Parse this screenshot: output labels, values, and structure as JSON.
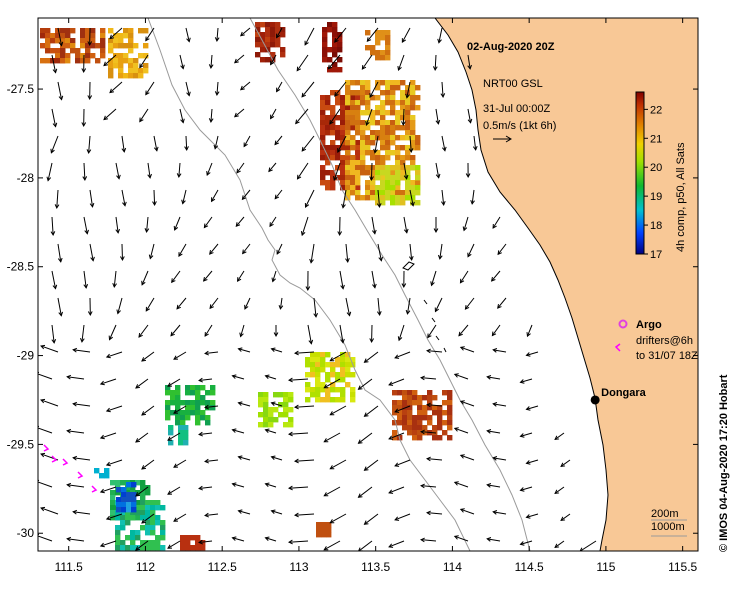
{
  "title": "02-Aug-2020 20Z",
  "credit": "© IMOS 04-Aug-2020 17:20 Hobart",
  "current_info": {
    "line1": "NRT00 GSL",
    "line2": "31-Jul 00:00Z",
    "scale": "0.5m/s (1kt 6h)"
  },
  "colorbar": {
    "label": "4h comp, p50, All Sats",
    "ticks": [
      "22",
      "21",
      "20",
      "19",
      "18",
      "17"
    ],
    "min": 17,
    "max": 22.6
  },
  "legend": {
    "argo": "Argo",
    "drifters_line1": "drifters@6h",
    "drifters_line2": "to 31/07 18Z"
  },
  "place": {
    "name": "Dongara",
    "lon": 114.93,
    "lat": -29.25
  },
  "isobaths": {
    "shallow": "200m",
    "deep": "1000m"
  },
  "x_ticks": [
    "111.5",
    "112",
    "112.5",
    "113",
    "113.5",
    "114",
    "114.5",
    "115",
    "115.5"
  ],
  "y_ticks": [
    "-27.5",
    "-28",
    "-28.5",
    "-29",
    "-29.5",
    "-30"
  ],
  "axes": {
    "lon_min": 111.3,
    "lon_max": 115.6,
    "lat_min": -30.1,
    "lat_max": -27.1
  },
  "colors": {
    "land": "#f8c896",
    "coast": "#000000",
    "isobath": "#9a9a9a",
    "argo": "#e040e0",
    "drifter": "#ff00ff"
  }
}
